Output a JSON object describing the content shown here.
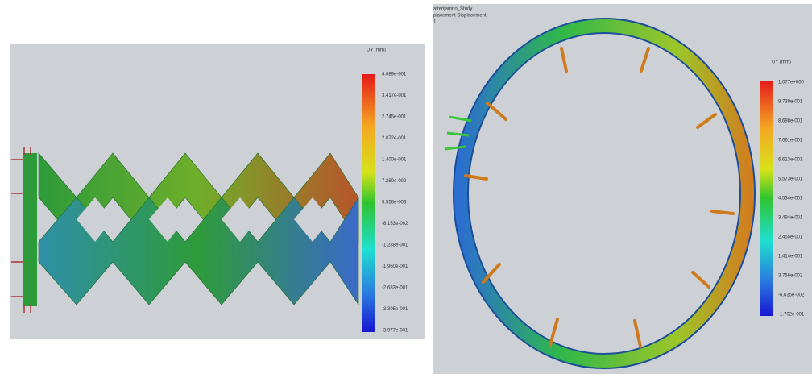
{
  "left_panel": {
    "legend": {
      "title": "UY (mm)",
      "labels": [
        "4.089e-001",
        "3.417e-001",
        "2.745e-001",
        "2.072e-001",
        "1.400e-001",
        "7.280e-002",
        "5.556e-003",
        "-6.153e-002",
        "-1.288e-001",
        "-1.960e-001",
        "-2.633e-001",
        "-3.305e-001",
        "-3.977e-001"
      ]
    }
  },
  "right_panel": {
    "header": [
      "atterijamno_Study",
      "placement Displacement",
      "1"
    ],
    "legend": {
      "title": "UY (mm)",
      "labels": [
        "1.077e+000",
        "9.739e-001",
        "8.698e-001",
        "7.661e-001",
        "6.613e-001",
        "5.573e-001",
        "4.534e-001",
        "3.494e-001",
        "2.455e-001",
        "1.414e-001",
        "3.756e-002",
        "-6.635e-002",
        "-1.702e-001"
      ]
    }
  }
}
